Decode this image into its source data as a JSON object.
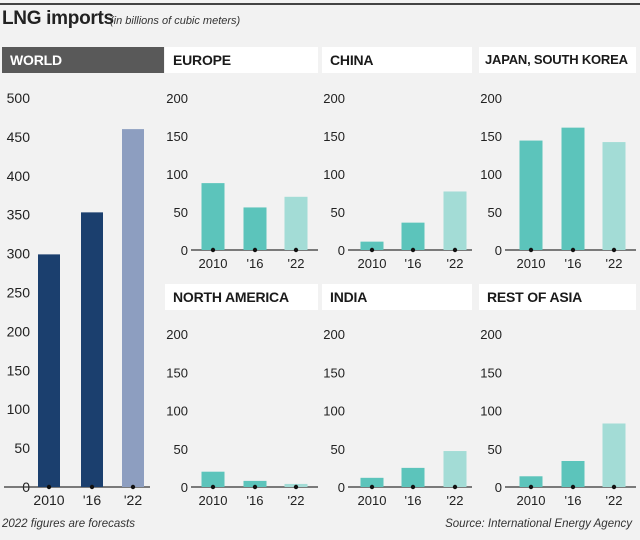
{
  "title": "LNG imports",
  "subtitle": "(in billions of cubic meters)",
  "footnote": "2022 figures are forecasts",
  "source": "Source: International Energy Agency",
  "colors": {
    "world_actual": "#1b3f6e",
    "world_forecast": "#8d9ec0",
    "region_actual": "#5cc4bb",
    "region_forecast": "#a3dcd6",
    "header_dark": "#595959",
    "axis": "#333333"
  },
  "chart_data": [
    {
      "type": "bar",
      "title": "WORLD",
      "categories": [
        "2010",
        "'16",
        "'22"
      ],
      "values": [
        299,
        353,
        460
      ],
      "ylim": [
        0,
        500
      ],
      "ticks": [
        0,
        50,
        100,
        150,
        200,
        250,
        300,
        350,
        400,
        450,
        500
      ]
    },
    {
      "type": "bar",
      "title": "EUROPE",
      "categories": [
        "2010",
        "'16",
        "'22"
      ],
      "values": [
        88,
        56,
        70
      ],
      "ylim": [
        0,
        200
      ],
      "ticks": [
        0,
        50,
        100,
        150,
        200
      ]
    },
    {
      "type": "bar",
      "title": "CHINA",
      "categories": [
        "2010",
        "'16",
        "'22"
      ],
      "values": [
        11,
        36,
        77
      ],
      "ylim": [
        0,
        200
      ],
      "ticks": [
        0,
        50,
        100,
        150,
        200
      ]
    },
    {
      "type": "bar",
      "title": "JAPAN, SOUTH KOREA",
      "categories": [
        "2010",
        "'16",
        "'22"
      ],
      "values": [
        144,
        161,
        142
      ],
      "ylim": [
        0,
        200
      ],
      "ticks": [
        0,
        50,
        100,
        150,
        200
      ]
    },
    {
      "type": "bar",
      "title": "NORTH AMERICA",
      "categories": [
        "2010",
        "'16",
        "'22"
      ],
      "values": [
        20,
        8,
        4
      ],
      "ylim": [
        0,
        200
      ],
      "ticks": [
        0,
        50,
        100,
        150,
        200
      ]
    },
    {
      "type": "bar",
      "title": "INDIA",
      "categories": [
        "2010",
        "'16",
        "'22"
      ],
      "values": [
        12,
        25,
        47
      ],
      "ylim": [
        0,
        200
      ],
      "ticks": [
        0,
        50,
        100,
        150,
        200
      ]
    },
    {
      "type": "bar",
      "title": "REST OF ASIA",
      "categories": [
        "2010",
        "'16",
        "'22"
      ],
      "values": [
        14,
        34,
        83
      ],
      "ylim": [
        0,
        200
      ],
      "ticks": [
        0,
        50,
        100,
        150,
        200
      ]
    }
  ]
}
